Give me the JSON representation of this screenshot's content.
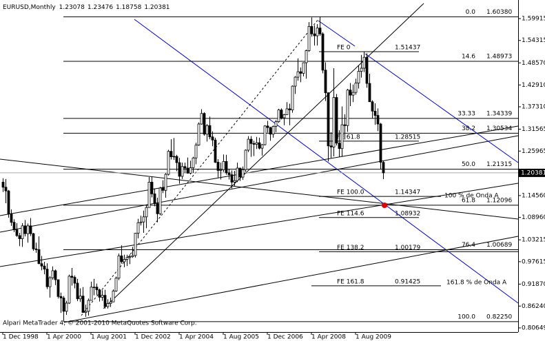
{
  "header": {
    "symbol": "EURUSD,Monthly"
  },
  "footer": "Alpari MetaTrader 4, © 2001-2010 MetaQuotes Software Corp.",
  "chart_data": {
    "type": "candlestick",
    "ohlc": [
      [
        1.18,
        1.19,
        1.155,
        1.167
      ],
      [
        1.167,
        1.188,
        1.126,
        1.1575
      ],
      [
        1.1575,
        1.16,
        1.089,
        1.099
      ],
      [
        1.099,
        1.11,
        1.068,
        1.077
      ],
      [
        1.077,
        1.085,
        1.052,
        1.058
      ],
      [
        1.058,
        1.075,
        1.04,
        1.043
      ],
      [
        1.043,
        1.05,
        1.016,
        1.035
      ],
      [
        1.035,
        1.075,
        1.014,
        1.068
      ],
      [
        1.068,
        1.083,
        1.041,
        1.048
      ],
      [
        1.048,
        1.074,
        1.025,
        1.068
      ],
      [
        1.068,
        1.088,
        1.042,
        1.048
      ],
      [
        1.048,
        1.05,
        1.004,
        1.009
      ],
      [
        1.009,
        1.025,
        0.999,
        1.007
      ],
      [
        1.007,
        1.041,
        0.97,
        0.971
      ],
      [
        0.971,
        0.991,
        0.954,
        0.965
      ],
      [
        0.965,
        0.976,
        0.944,
        0.957
      ],
      [
        0.957,
        0.972,
        0.906,
        0.912
      ],
      [
        0.912,
        0.939,
        0.884,
        0.935
      ],
      [
        0.935,
        0.964,
        0.93,
        0.953
      ],
      [
        0.953,
        0.956,
        0.916,
        0.93
      ],
      [
        0.93,
        0.93,
        0.882,
        0.887
      ],
      [
        0.887,
        0.897,
        0.845,
        0.883
      ],
      [
        0.883,
        0.888,
        0.8225,
        0.849
      ],
      [
        0.849,
        0.876,
        0.84,
        0.87
      ],
      [
        0.87,
        0.943,
        0.868,
        0.939
      ],
      [
        0.939,
        0.96,
        0.915,
        0.936
      ],
      [
        0.936,
        0.941,
        0.908,
        0.921
      ],
      [
        0.921,
        0.932,
        0.875,
        0.881
      ],
      [
        0.881,
        0.908,
        0.873,
        0.888
      ],
      [
        0.888,
        0.911,
        0.845,
        0.846
      ],
      [
        0.846,
        0.866,
        0.835,
        0.849
      ],
      [
        0.849,
        0.882,
        0.838,
        0.877
      ],
      [
        0.877,
        0.925,
        0.877,
        0.911
      ],
      [
        0.911,
        0.932,
        0.89,
        0.911
      ],
      [
        0.911,
        0.92,
        0.891,
        0.904
      ],
      [
        0.904,
        0.907,
        0.874,
        0.885
      ],
      [
        0.885,
        0.903,
        0.876,
        0.89
      ],
      [
        0.89,
        0.904,
        0.856,
        0.861
      ],
      [
        0.861,
        0.88,
        0.856,
        0.869
      ],
      [
        0.869,
        0.884,
        0.86,
        0.873
      ],
      [
        0.873,
        0.905,
        0.873,
        0.901
      ],
      [
        0.901,
        0.938,
        0.899,
        0.934
      ],
      [
        0.934,
        0.997,
        0.929,
        0.991
      ],
      [
        0.991,
        1.018,
        0.971,
        0.976
      ],
      [
        0.976,
        0.994,
        0.962,
        0.982
      ],
      [
        0.982,
        0.994,
        0.965,
        0.987
      ],
      [
        0.987,
        0.995,
        0.97,
        0.989
      ],
      [
        0.989,
        1.014,
        0.986,
        0.992
      ],
      [
        0.992,
        1.05,
        0.987,
        1.049
      ],
      [
        1.049,
        1.086,
        1.036,
        1.076
      ],
      [
        1.076,
        1.094,
        1.069,
        1.078
      ],
      [
        1.078,
        1.107,
        1.05,
        1.091
      ],
      [
        1.091,
        1.123,
        1.062,
        1.115
      ],
      [
        1.115,
        1.193,
        1.115,
        1.18
      ],
      [
        1.18,
        1.193,
        1.141,
        1.15
      ],
      [
        1.15,
        1.164,
        1.118,
        1.125
      ],
      [
        1.125,
        1.14,
        1.077,
        1.099
      ],
      [
        1.099,
        1.168,
        1.095,
        1.165
      ],
      [
        1.165,
        1.185,
        1.152,
        1.159
      ],
      [
        1.159,
        1.203,
        1.14,
        1.2
      ],
      [
        1.2,
        1.263,
        1.197,
        1.259
      ],
      [
        1.259,
        1.29,
        1.238,
        1.245
      ],
      [
        1.245,
        1.293,
        1.237,
        1.246
      ],
      [
        1.246,
        1.25,
        1.208,
        1.23
      ],
      [
        1.23,
        1.242,
        1.176,
        1.195
      ],
      [
        1.195,
        1.23,
        1.188,
        1.22
      ],
      [
        1.22,
        1.23,
        1.203,
        1.216
      ],
      [
        1.216,
        1.243,
        1.202,
        1.203
      ],
      [
        1.203,
        1.235,
        1.2,
        1.217
      ],
      [
        1.217,
        1.245,
        1.204,
        1.242
      ],
      [
        1.242,
        1.281,
        1.226,
        1.275
      ],
      [
        1.275,
        1.333,
        1.273,
        1.329
      ],
      [
        1.329,
        1.367,
        1.327,
        1.356
      ],
      [
        1.356,
        1.359,
        1.299,
        1.303
      ],
      [
        1.303,
        1.329,
        1.284,
        1.325
      ],
      [
        1.325,
        1.348,
        1.29,
        1.296
      ],
      [
        1.296,
        1.31,
        1.272,
        1.288
      ],
      [
        1.288,
        1.294,
        1.229,
        1.231
      ],
      [
        1.231,
        1.239,
        1.192,
        1.21
      ],
      [
        1.21,
        1.23,
        1.187,
        1.212
      ],
      [
        1.212,
        1.251,
        1.206,
        1.233
      ],
      [
        1.233,
        1.25,
        1.199,
        1.204
      ],
      [
        1.204,
        1.214,
        1.187,
        1.199
      ],
      [
        1.199,
        1.21,
        1.164,
        1.18
      ],
      [
        1.18,
        1.209,
        1.17,
        1.184
      ],
      [
        1.184,
        1.23,
        1.18,
        1.216
      ],
      [
        1.216,
        1.217,
        1.183,
        1.193
      ],
      [
        1.193,
        1.22,
        1.186,
        1.212
      ],
      [
        1.212,
        1.264,
        1.206,
        1.262
      ],
      [
        1.262,
        1.298,
        1.257,
        1.29
      ],
      [
        1.29,
        1.298,
        1.245,
        1.279
      ],
      [
        1.279,
        1.286,
        1.247,
        1.277
      ],
      [
        1.277,
        1.296,
        1.265,
        1.281
      ],
      [
        1.281,
        1.294,
        1.264,
        1.267
      ],
      [
        1.267,
        1.278,
        1.248,
        1.276
      ],
      [
        1.276,
        1.326,
        1.274,
        1.324
      ],
      [
        1.324,
        1.337,
        1.307,
        1.32
      ],
      [
        1.32,
        1.322,
        1.286,
        1.303
      ],
      [
        1.303,
        1.325,
        1.294,
        1.323
      ],
      [
        1.323,
        1.339,
        1.308,
        1.335
      ],
      [
        1.335,
        1.368,
        1.332,
        1.365
      ],
      [
        1.365,
        1.369,
        1.341,
        1.345
      ],
      [
        1.345,
        1.355,
        1.326,
        1.353
      ],
      [
        1.353,
        1.385,
        1.352,
        1.368
      ],
      [
        1.368,
        1.381,
        1.326,
        1.365
      ],
      [
        1.365,
        1.428,
        1.358,
        1.426
      ],
      [
        1.426,
        1.452,
        1.406,
        1.449
      ],
      [
        1.449,
        1.497,
        1.44,
        1.463
      ],
      [
        1.463,
        1.474,
        1.436,
        1.459
      ],
      [
        1.459,
        1.487,
        1.451,
        1.486
      ],
      [
        1.486,
        1.52,
        1.445,
        1.517
      ],
      [
        1.517,
        1.59,
        1.514,
        1.579
      ],
      [
        1.579,
        1.602,
        1.553,
        1.56
      ],
      [
        1.56,
        1.582,
        1.53,
        1.555
      ],
      [
        1.555,
        1.585,
        1.53,
        1.575
      ],
      [
        1.575,
        1.6038,
        1.555,
        1.56
      ],
      [
        1.56,
        1.564,
        1.459,
        1.467
      ],
      [
        1.467,
        1.487,
        1.388,
        1.409
      ],
      [
        1.409,
        1.41,
        1.233,
        1.273
      ],
      [
        1.273,
        1.308,
        1.242,
        1.27
      ],
      [
        1.27,
        1.472,
        1.246,
        1.397
      ],
      [
        1.397,
        1.406,
        1.274,
        1.28
      ],
      [
        1.28,
        1.313,
        1.245,
        1.266
      ],
      [
        1.266,
        1.374,
        1.246,
        1.327
      ],
      [
        1.327,
        1.354,
        1.289,
        1.325
      ],
      [
        1.325,
        1.419,
        1.309,
        1.416
      ],
      [
        1.416,
        1.434,
        1.375,
        1.403
      ],
      [
        1.403,
        1.43,
        1.385,
        1.41
      ],
      [
        1.41,
        1.445,
        1.404,
        1.434
      ],
      [
        1.434,
        1.479,
        1.42,
        1.464
      ],
      [
        1.464,
        1.506,
        1.448,
        1.472
      ],
      [
        1.472,
        1.514,
        1.462,
        1.5
      ],
      [
        1.5,
        1.51,
        1.422,
        1.433
      ],
      [
        1.433,
        1.458,
        1.386,
        1.386
      ],
      [
        1.386,
        1.39,
        1.344,
        1.362
      ],
      [
        1.362,
        1.382,
        1.327,
        1.351
      ],
      [
        1.351,
        1.369,
        1.311,
        1.329
      ],
      [
        1.329,
        1.332,
        1.214,
        1.231
      ],
      [
        1.23078,
        1.23476,
        1.18758,
        1.20381
      ]
    ],
    "xlim": [
      -1,
      187
    ],
    "xticks": [
      {
        "value": 0,
        "label": "1 Dec 1998"
      },
      {
        "value": 16,
        "label": "1 Apr 2000"
      },
      {
        "value": 32,
        "label": "1 Aug 2001"
      },
      {
        "value": 48,
        "label": "1 Dec 2002"
      },
      {
        "value": 64,
        "label": "1 Apr 2004"
      },
      {
        "value": 80,
        "label": "1 Aug 2005"
      },
      {
        "value": 96,
        "label": "1 Dec 2006"
      },
      {
        "value": 112,
        "label": "1 Apr 2008"
      },
      {
        "value": 128,
        "label": "1 Aug 2009"
      }
    ],
    "ylim": [
      0.79583,
      1.64682
    ],
    "yticks": [
      1.59915,
      1.54315,
      {
        "value": 1.4857,
        "label": "1.48570"
      },
      {
        "value": 1.4291,
        "label": "1.42910"
      },
      {
        "value": 1.3731,
        "label": "1.37310"
      },
      1.31565,
      1.25965,
      {
        "value": 1.1456,
        "label": "1.14560"
      },
      {
        "value": 1.0896,
        "label": "1.08960"
      },
      1.03215,
      0.97615,
      {
        "value": 0.9187,
        "label": "0.91870"
      },
      {
        "value": 0.8624,
        "label": "0.86240"
      },
      0.80649
    ],
    "bull_color": "#ffffff",
    "bear_color": "#000000",
    "retracement": [
      {
        "level": "0.0",
        "price": {
          "value": 1.6038,
          "label": "1.60380"
        }
      },
      {
        "level": "14.6",
        "price": 1.48973
      },
      {
        "level": "33.33",
        "price": 1.34339
      },
      {
        "level": "38.2",
        "price": 1.30534
      },
      {
        "level": "50.0",
        "price": 1.21315
      },
      {
        "level": "61.8",
        "price": 1.12096
      },
      {
        "level": "76.4",
        "price": 1.00689
      },
      {
        "level": "100.0",
        "price": {
          "value": 0.8225,
          "label": "0.82250"
        }
      }
    ],
    "expansion": [
      {
        "level": "FE 0",
        "price": 1.51437
      },
      {
        "level": "FE 61.8",
        "price": 1.28515
      },
      {
        "level": "FE 100.0",
        "price": 1.14347
      },
      {
        "level": "FE 114.6",
        "price": 1.08932
      },
      {
        "level": "FE 138.2",
        "price": 1.00179
      },
      {
        "level": "FE 161.8",
        "price": 0.91425
      }
    ],
    "annotations": [
      "100 % de Onda A",
      "161.8 % de Onda A"
    ]
  }
}
